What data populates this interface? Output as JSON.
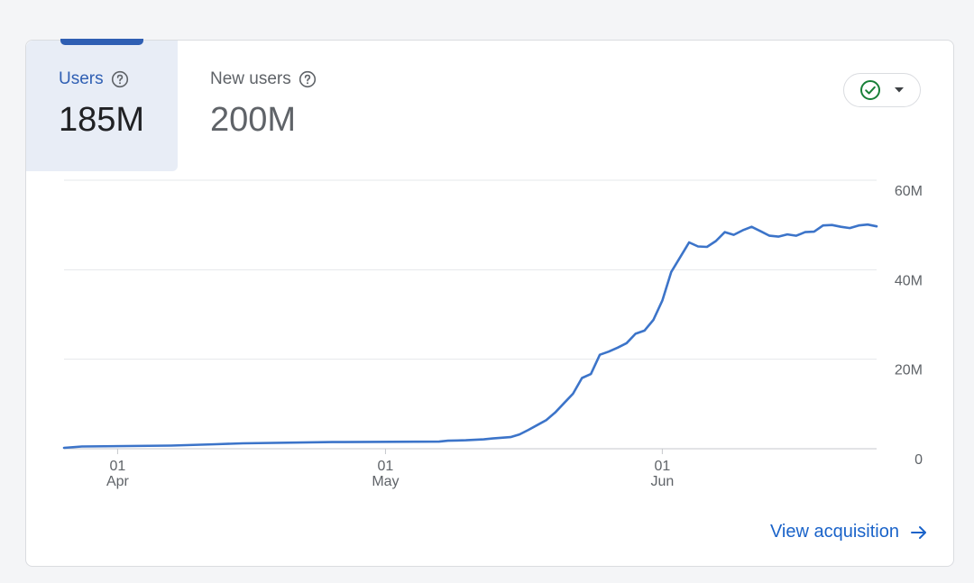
{
  "metrics": [
    {
      "label": "Users",
      "value": "185M"
    },
    {
      "label": "New users",
      "value": "200M"
    }
  ],
  "link": {
    "label": "View acquisition"
  },
  "icons": {
    "help": "help-circle-icon",
    "selector_check": "check-circle-icon",
    "selector_caret": "caret-down-icon",
    "link_arrow": "arrow-right-icon"
  },
  "colors": {
    "series": "#3c74c9",
    "active_tab_bg": "#e8edf6",
    "active_tab_text": "#2f5fb3",
    "link": "#1a63c9",
    "check": "#188038"
  },
  "chart_data": {
    "type": "line",
    "title": "",
    "xlabel": "",
    "ylabel": "",
    "ylim": [
      0,
      60
    ],
    "yticks": [
      0,
      20,
      40,
      60
    ],
    "ytick_labels": [
      "0",
      "20M",
      "40M",
      "60M"
    ],
    "y_axis_position": "right",
    "grid": true,
    "xticks": [
      {
        "day": 6,
        "label_top": "01",
        "label_bottom": "Apr"
      },
      {
        "day": 36,
        "label_top": "01",
        "label_bottom": "May"
      },
      {
        "day": 67,
        "label_top": "01",
        "label_bottom": "Jun"
      }
    ],
    "series": [
      {
        "x": [
          0,
          2,
          12,
          17,
          20,
          30,
          42,
          43,
          45,
          47,
          48,
          50,
          51,
          52,
          53,
          54,
          55,
          56,
          57,
          58,
          59,
          60,
          61,
          62,
          63,
          64,
          65,
          66,
          67,
          68,
          69,
          70,
          71,
          72,
          73,
          74,
          75,
          76,
          77,
          78,
          79,
          80,
          81,
          82,
          83,
          84,
          85,
          86,
          87,
          88,
          89,
          90,
          91
        ],
        "values": [
          0.2,
          0.5,
          0.7,
          1.0,
          1.2,
          1.5,
          1.6,
          1.8,
          1.9,
          2.1,
          2.3,
          2.6,
          3.2,
          4.2,
          5.3,
          6.4,
          8.1,
          10.2,
          12.3,
          15.8,
          16.7,
          21.0,
          21.7,
          22.6,
          23.6,
          25.7,
          26.4,
          28.8,
          33.1,
          39.5,
          42.8,
          46.1,
          45.2,
          45.1,
          46.4,
          48.4,
          47.8,
          48.8,
          49.6,
          48.6,
          47.6,
          47.4,
          47.9,
          47.6,
          48.4,
          48.5,
          49.9,
          50.0,
          49.6,
          49.3,
          49.9,
          50.1,
          49.7
        ]
      }
    ]
  }
}
